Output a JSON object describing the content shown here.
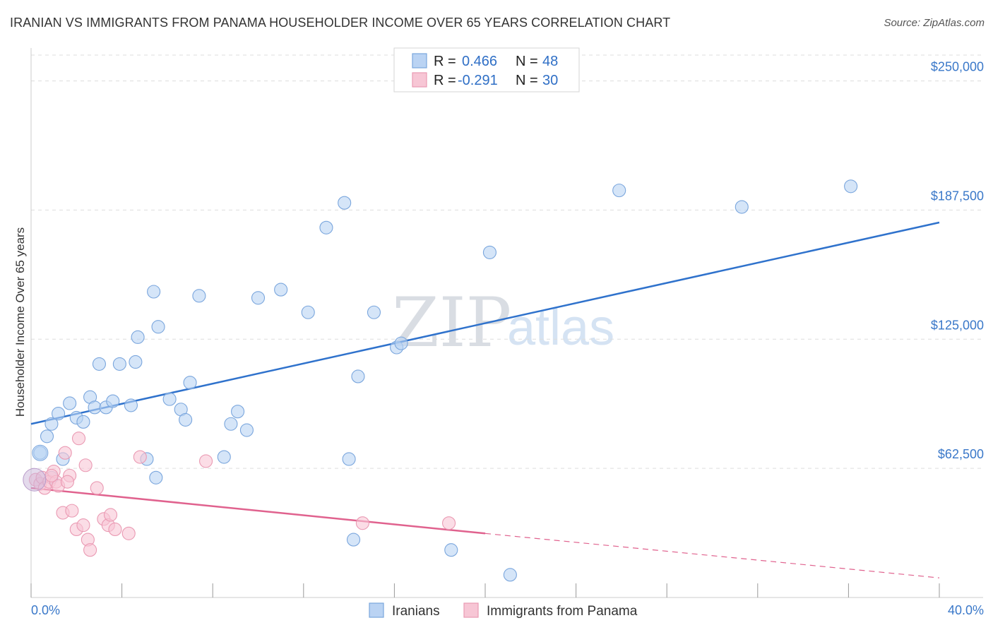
{
  "title": "IRANIAN VS IMMIGRANTS FROM PANAMA HOUSEHOLDER INCOME OVER 65 YEARS CORRELATION CHART",
  "source": "Source: ZipAtlas.com",
  "watermark": {
    "zip": "ZIP",
    "atlas": "atlas"
  },
  "legend": {
    "r_label": "R =",
    "n_label": "N =",
    "rows": [
      {
        "r": "0.466",
        "n": "48",
        "color": "#a9c8f0"
      },
      {
        "r": "-0.291",
        "n": "30",
        "color": "#f5b8cb"
      }
    ]
  },
  "colors": {
    "blue_line": "#2f72cc",
    "pink_line": "#e0628e",
    "blue_fill": "#b9d3f3",
    "pink_fill": "#f8c7d6"
  },
  "chart_data": {
    "type": "scatter",
    "title": "IRANIAN VS IMMIGRANTS FROM PANAMA HOUSEHOLDER INCOME OVER 65 YEARS CORRELATION CHART",
    "xlabel": "",
    "ylabel": "Householder Income Over 65 years",
    "xlim": [
      0,
      40
    ],
    "ylim": [
      0,
      262500
    ],
    "x_tick_labels": [
      "0.0%",
      "40.0%"
    ],
    "y_ticks": [
      62500,
      125000,
      187500,
      250000
    ],
    "y_tick_labels": [
      "$62,500",
      "$125,000",
      "$187,500",
      "$250,000"
    ],
    "grid": true,
    "legend_position": "top-center",
    "series": [
      {
        "name": "Iranians",
        "color": "#a9c8f0",
        "trend": {
          "x": [
            0,
            40
          ],
          "y": [
            84000,
            181500
          ]
        },
        "points": [
          [
            0.4,
            70000
          ],
          [
            0.7,
            78000
          ],
          [
            0.9,
            84000
          ],
          [
            1.2,
            89000
          ],
          [
            1.4,
            67000
          ],
          [
            1.7,
            94000
          ],
          [
            2.0,
            87000
          ],
          [
            2.3,
            85000
          ],
          [
            2.6,
            97000
          ],
          [
            2.8,
            92000
          ],
          [
            3.0,
            113000
          ],
          [
            3.3,
            92000
          ],
          [
            3.6,
            95000
          ],
          [
            3.9,
            113000
          ],
          [
            4.4,
            93000
          ],
          [
            4.6,
            114000
          ],
          [
            4.7,
            126000
          ],
          [
            5.1,
            67000
          ],
          [
            5.4,
            148000
          ],
          [
            5.6,
            131000
          ],
          [
            6.1,
            96000
          ],
          [
            6.6,
            91000
          ],
          [
            6.8,
            86000
          ],
          [
            7.0,
            104000
          ],
          [
            7.4,
            146000
          ],
          [
            8.5,
            68000
          ],
          [
            8.8,
            84000
          ],
          [
            9.1,
            90000
          ],
          [
            9.5,
            81000
          ],
          [
            10.0,
            145000
          ],
          [
            11.0,
            149000
          ],
          [
            12.2,
            138000
          ],
          [
            13.0,
            179000
          ],
          [
            13.8,
            191000
          ],
          [
            14.4,
            107000
          ],
          [
            15.1,
            138000
          ],
          [
            16.1,
            121000
          ],
          [
            16.3,
            123000
          ],
          [
            14.0,
            67000
          ],
          [
            14.2,
            28000
          ],
          [
            18.5,
            23000
          ],
          [
            20.2,
            167000
          ],
          [
            21.1,
            11000
          ],
          [
            25.9,
            197000
          ],
          [
            31.3,
            189000
          ],
          [
            36.1,
            199000
          ],
          [
            0.9,
            58000
          ],
          [
            5.5,
            58000
          ]
        ]
      },
      {
        "name": "Immigrants from Panama",
        "color": "#f5b8cb",
        "trend": {
          "x": [
            0,
            20
          ],
          "y": [
            53000,
            31000
          ]
        },
        "trend_dashed": {
          "x": [
            20,
            40
          ],
          "y": [
            31000,
            9500
          ]
        },
        "points": [
          [
            0.2,
            57000
          ],
          [
            0.4,
            55000
          ],
          [
            0.5,
            58000
          ],
          [
            0.6,
            53000
          ],
          [
            0.8,
            56000
          ],
          [
            1.0,
            61000
          ],
          [
            1.1,
            56000
          ],
          [
            1.2,
            54000
          ],
          [
            1.4,
            41000
          ],
          [
            1.5,
            70000
          ],
          [
            1.7,
            59000
          ],
          [
            1.8,
            42000
          ],
          [
            2.0,
            33000
          ],
          [
            2.1,
            77000
          ],
          [
            2.3,
            35000
          ],
          [
            2.4,
            64000
          ],
          [
            2.5,
            28000
          ],
          [
            2.6,
            23000
          ],
          [
            2.9,
            53000
          ],
          [
            3.2,
            38000
          ],
          [
            3.4,
            35000
          ],
          [
            3.5,
            40000
          ],
          [
            3.7,
            33000
          ],
          [
            4.3,
            31000
          ],
          [
            4.8,
            68000
          ],
          [
            7.7,
            66000
          ],
          [
            14.6,
            36000
          ],
          [
            18.4,
            36000
          ],
          [
            1.6,
            56000
          ],
          [
            0.9,
            59000
          ]
        ]
      }
    ]
  },
  "bottom_legend": [
    {
      "label": "Iranians",
      "color": "#a9c8f0"
    },
    {
      "label": "Immigrants from Panama",
      "color": "#f5b8cb"
    }
  ]
}
